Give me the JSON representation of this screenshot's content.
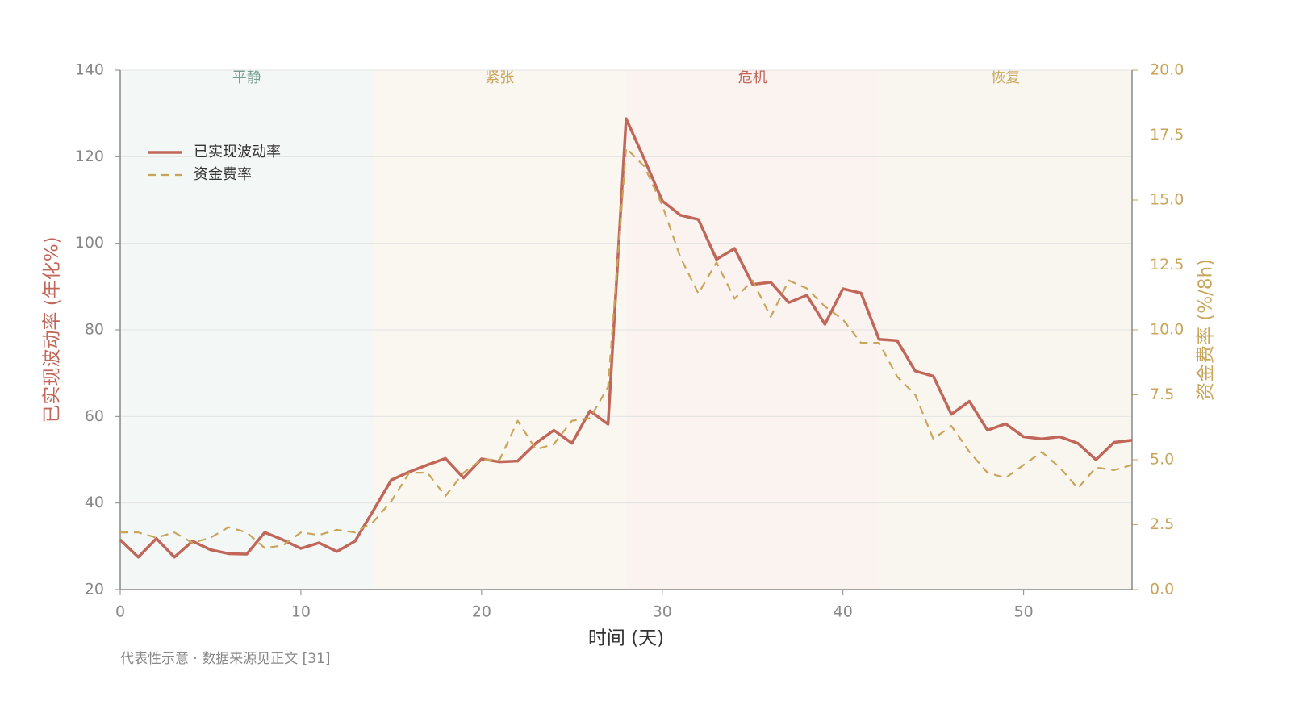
{
  "chart_data": {
    "type": "line",
    "x_label": "时间 (天)",
    "y_label": "已实现波动率 (年化%)",
    "y2_label": "资金费率 (%/8h)",
    "footnote": "代表性示意 · 数据来源见正文 [31]",
    "legend": "upper left",
    "grid": true,
    "xlim": [
      0,
      56
    ],
    "xticks": [
      0,
      10,
      20,
      30,
      40,
      50
    ],
    "ylim": [
      20,
      140
    ],
    "yticks": [
      20,
      40,
      60,
      80,
      100,
      120,
      140
    ],
    "y2lim": [
      0,
      20
    ],
    "y2ticks": [
      {
        "value": 0,
        "label": "0.0"
      },
      2.5,
      {
        "value": 5,
        "label": "5.0"
      },
      7.5,
      {
        "value": 10,
        "label": "10.0"
      },
      12.5,
      {
        "value": 15,
        "label": "15.0"
      },
      17.5,
      {
        "value": 20,
        "label": "20.0"
      }
    ],
    "regions": [
      {
        "label": "平静",
        "start": 0,
        "end": 14,
        "color": "#f3f7f5",
        "text_color": "#7a9e8e"
      },
      {
        "label": "紧张",
        "start": 14,
        "end": 28,
        "color": "#faf6f0",
        "text_color": "#c9a55a"
      },
      {
        "label": "危机",
        "start": 28,
        "end": 42,
        "color": "#faf3f0",
        "text_color": "#c0675a"
      },
      {
        "label": "恢复",
        "start": 42,
        "end": 56,
        "color": "#f9f6ef",
        "text_color": "#c9a55a"
      }
    ],
    "x": [
      0,
      1,
      2,
      3,
      4,
      5,
      6,
      7,
      8,
      9,
      10,
      11,
      12,
      13,
      14,
      15,
      16,
      17,
      18,
      19,
      20,
      21,
      22,
      23,
      24,
      25,
      26,
      27,
      28,
      29,
      30,
      31,
      32,
      33,
      34,
      35,
      36,
      37,
      38,
      39,
      40,
      41,
      42,
      43,
      44,
      45,
      46,
      47,
      48,
      49,
      50,
      51,
      52,
      53,
      54,
      55,
      56
    ],
    "series": [
      {
        "name": "已实现波动率",
        "color": "#c0675a",
        "values": [
          31.5,
          27.5,
          31.8,
          27.5,
          31.2,
          29.2,
          28.3,
          28.2,
          33.2,
          31.5,
          29.5,
          30.8,
          28.8,
          31.2,
          38.2,
          45.3,
          47.2,
          48.8,
          50.3,
          45.8,
          50.2,
          49.5,
          49.7,
          53.8,
          56.8,
          53.8,
          61.3,
          58.2,
          128.8,
          119.5,
          109.8,
          106.5,
          105.5,
          96.3,
          98.8,
          90.5,
          91.0,
          86.3,
          88.0,
          81.3,
          89.5,
          88.5,
          77.8,
          77.5,
          70.5,
          69.3,
          60.5,
          63.5,
          56.8,
          58.3,
          55.3,
          54.8,
          55.3,
          53.8,
          50.0,
          54.0,
          54.5
        ]
      },
      {
        "name": "资金费率",
        "color": "#c9a55a",
        "axis": "y2",
        "dashed": true,
        "values": [
          2.2,
          2.2,
          2.0,
          2.2,
          1.8,
          2.0,
          2.4,
          2.2,
          1.6,
          1.7,
          2.2,
          2.1,
          2.3,
          2.2,
          2.6,
          3.4,
          4.5,
          4.5,
          3.6,
          4.5,
          5.0,
          5.0,
          6.5,
          5.4,
          5.6,
          6.5,
          6.6,
          7.8,
          17.0,
          16.3,
          14.8,
          12.8,
          11.4,
          12.6,
          11.2,
          11.9,
          10.5,
          11.9,
          11.6,
          10.9,
          10.4,
          9.5,
          9.5,
          8.2,
          7.5,
          5.8,
          6.3,
          5.3,
          4.5,
          4.3,
          4.8,
          5.3,
          4.7,
          3.9,
          4.7,
          4.6,
          4.8
        ]
      }
    ]
  }
}
